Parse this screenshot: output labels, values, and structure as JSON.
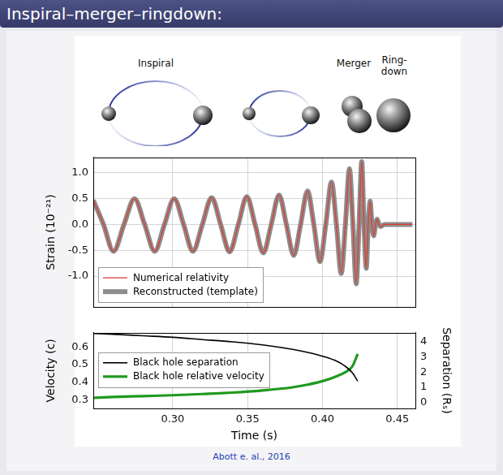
{
  "header": {
    "title": "Inspiral–merger–ringdown:"
  },
  "illustration": {
    "labels": [
      "Inspiral",
      "Merger",
      "Ring-down"
    ]
  },
  "chart_data": [
    {
      "type": "line",
      "ylabel": "Strain (10⁻²¹)",
      "x": [
        0.247,
        0.2538,
        0.2605,
        0.2675,
        0.2745,
        0.2813,
        0.288,
        0.2945,
        0.301,
        0.3073,
        0.3135,
        0.3198,
        0.326,
        0.332,
        0.338,
        0.3438,
        0.3495,
        0.355,
        0.3605,
        0.3658,
        0.371,
        0.3759,
        0.3808,
        0.3854,
        0.39,
        0.3942,
        0.3983,
        0.4022,
        0.406,
        0.4093,
        0.4125,
        0.4153,
        0.418,
        0.4203,
        0.4225,
        0.4244,
        0.4262,
        0.4277,
        0.4292,
        0.4305,
        0.4318,
        0.433,
        0.4342,
        0.4354,
        0.4365,
        0.4377,
        0.4388,
        0.4415,
        0.46
      ],
      "series": [
        {
          "name": "Numerical relativity",
          "color": "#e03c31",
          "values": [
            0.47,
            0,
            -0.52,
            0,
            0.5,
            0,
            -0.52,
            0,
            0.5,
            0,
            -0.52,
            0,
            0.52,
            0,
            -0.53,
            0,
            0.54,
            0,
            -0.55,
            0,
            0.57,
            0,
            -0.6,
            0,
            0.65,
            0,
            -0.72,
            0,
            0.82,
            0,
            -0.95,
            0,
            1.08,
            0,
            -1.15,
            0,
            1.22,
            0,
            -0.85,
            0,
            0.45,
            0,
            -0.22,
            0,
            0.1,
            0,
            -0.04,
            0,
            0
          ]
        },
        {
          "name": "Reconstructed (template)",
          "color": "#8c8c8c",
          "values": [
            0.47,
            0,
            -0.52,
            0,
            0.5,
            0,
            -0.52,
            0,
            0.5,
            0,
            -0.52,
            0,
            0.52,
            0,
            -0.53,
            0,
            0.54,
            0,
            -0.55,
            0,
            0.57,
            0,
            -0.6,
            0,
            0.65,
            0,
            -0.72,
            0,
            0.82,
            0,
            -0.95,
            0,
            1.08,
            0,
            -1.15,
            0,
            1.22,
            0,
            -0.85,
            0,
            0.45,
            0,
            -0.22,
            0,
            0.1,
            0,
            -0.04,
            0,
            0
          ]
        }
      ],
      "xlim": [
        0.247,
        0.462
      ],
      "xticks": [
        0.3,
        0.35,
        0.4,
        0.45
      ],
      "ylim": [
        -1.6,
        1.3
      ],
      "yticks": [
        {
          "value": -1,
          "label": "-1.0"
        },
        -0.5,
        {
          "value": 0,
          "label": "0.0"
        },
        0.5,
        {
          "value": 1,
          "label": "1.0"
        }
      ],
      "grid": true,
      "legend": "lower left",
      "tick_labels": "y"
    },
    {
      "type": "line",
      "xlabel": "Time (s)",
      "ylabel": "Velocity (c)",
      "y2label": "Separation (Rₛ)",
      "series": [
        {
          "name": "Black hole separation",
          "color": "#000000",
          "axis": "y2",
          "x": [
            0.247,
            0.26,
            0.28,
            0.3,
            0.32,
            0.34,
            0.36,
            0.38,
            0.39,
            0.4,
            0.41,
            0.415,
            0.42,
            0.4235
          ],
          "values": [
            4.55,
            4.5,
            4.4,
            4.3,
            4.15,
            4.0,
            3.8,
            3.5,
            3.3,
            3.05,
            2.7,
            2.4,
            1.95,
            1.4
          ]
        },
        {
          "name": "Black hole relative velocity",
          "color": "#1e9a1e",
          "x": [
            0.247,
            0.26,
            0.28,
            0.3,
            0.32,
            0.34,
            0.36,
            0.38,
            0.39,
            0.4,
            0.41,
            0.415,
            0.42,
            0.4235
          ],
          "values": [
            0.31,
            0.315,
            0.32,
            0.325,
            0.332,
            0.34,
            0.352,
            0.37,
            0.385,
            0.405,
            0.435,
            0.455,
            0.49,
            0.56
          ]
        }
      ],
      "xlim": [
        0.247,
        0.462
      ],
      "xticks": [
        {
          "value": 0.3,
          "label": "0.30"
        },
        {
          "value": 0.35,
          "label": "0.35"
        },
        {
          "value": 0.4,
          "label": "0.40"
        },
        {
          "value": 0.45,
          "label": "0.45"
        }
      ],
      "ylim": [
        0.25,
        0.68
      ],
      "yticks": [
        0.3,
        0.4,
        0.5,
        0.6
      ],
      "y2lim": [
        -0.4,
        4.6
      ],
      "y2ticks": [
        0,
        1,
        2,
        3,
        4
      ],
      "grid": "x",
      "legend": "upper left"
    }
  ],
  "caption": "Abott e. al., 2016"
}
